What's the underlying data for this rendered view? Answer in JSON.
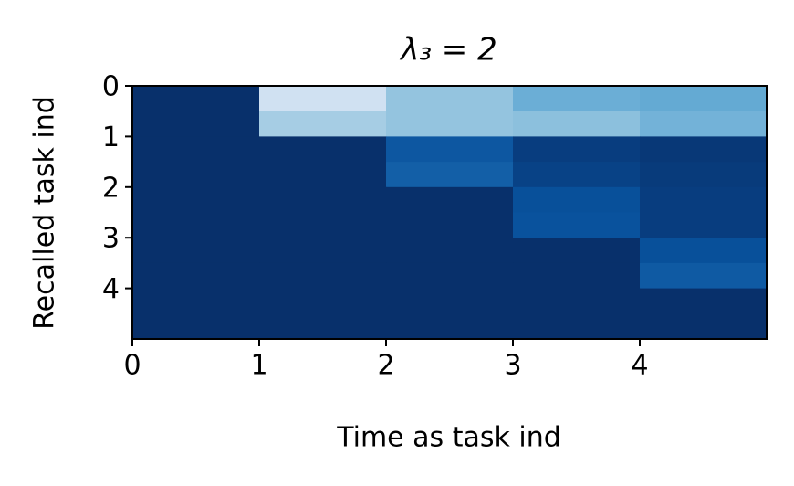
{
  "chart_data": {
    "type": "heatmap",
    "title": "λ₃ = 2",
    "xlabel": "Time as task ind",
    "ylabel": "Recalled task ind",
    "xbins": [
      0,
      1,
      2,
      3,
      4,
      5
    ],
    "ybins": [
      0,
      0.5,
      1,
      1.5,
      2,
      2.5,
      3,
      3.5,
      4,
      4.5,
      5
    ],
    "values": [
      [
        1,
        0.2,
        0.4,
        0.5,
        0.52
      ],
      [
        1,
        0.35,
        0.4,
        0.42,
        0.48
      ],
      [
        1,
        1,
        0.85,
        0.95,
        0.97
      ],
      [
        1,
        1,
        0.82,
        0.93,
        0.96
      ],
      [
        1,
        1,
        1,
        0.88,
        0.95
      ],
      [
        1,
        1,
        1,
        0.87,
        0.95
      ],
      [
        1,
        1,
        1,
        1,
        0.88
      ],
      [
        1,
        1,
        1,
        1,
        0.84
      ],
      [
        1,
        1,
        1,
        1,
        1
      ],
      [
        1,
        1,
        1,
        1,
        1
      ]
    ],
    "colormap": [
      "#f7fbff",
      "#deebf7",
      "#c6dbef",
      "#9ecae1",
      "#6baed6",
      "#4292c6",
      "#2171b5",
      "#08519c",
      "#08306b"
    ],
    "clim": [
      0,
      1
    ],
    "xlim": [
      0,
      5
    ],
    "ylim": [
      5,
      0
    ],
    "xticks": [
      0,
      1,
      2,
      3,
      4
    ],
    "yticks": [
      0,
      1,
      2,
      3,
      4
    ]
  }
}
